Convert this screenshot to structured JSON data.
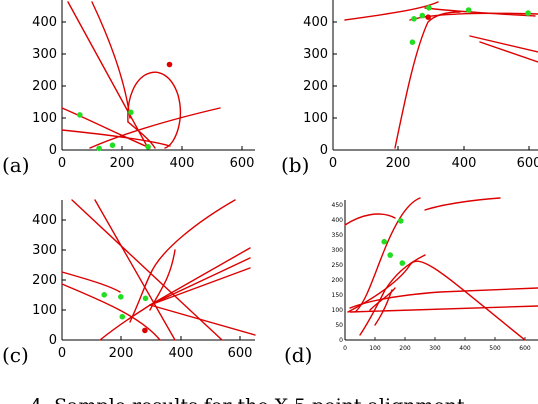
{
  "panels": [
    {
      "label": "(a)",
      "xticks": [
        "0",
        "200",
        "400",
        "600"
      ],
      "yticks": [
        "0",
        "100",
        "200",
        "300",
        "400"
      ],
      "green_points": [
        [
          60,
          110
        ],
        [
          125,
          5
        ],
        [
          170,
          15
        ],
        [
          232,
          118
        ],
        [
          290,
          10
        ]
      ],
      "red_points": [
        [
          362,
          268
        ]
      ],
      "xlim": [
        0,
        650
      ],
      "ylim": [
        0,
        470
      ]
    },
    {
      "label": "(b)",
      "xticks": [
        "0",
        "200",
        "400",
        "600"
      ],
      "yticks": [
        "0",
        "100",
        "200",
        "300",
        "400"
      ],
      "green_points": [
        [
          240,
          345
        ],
        [
          245,
          420
        ],
        [
          270,
          430
        ],
        [
          290,
          455
        ],
        [
          410,
          448
        ],
        [
          590,
          438
        ]
      ],
      "red_points": [
        [
          288,
          425
        ]
      ],
      "xlim": [
        0,
        620
      ],
      "ylim": [
        0,
        480
      ]
    },
    {
      "label": "(c)",
      "xticks": [
        "0",
        "200",
        "400",
        "600"
      ],
      "yticks": [
        "0",
        "100",
        "200",
        "300",
        "400"
      ],
      "green_points": [
        [
          140,
          155
        ],
        [
          195,
          148
        ],
        [
          200,
          80
        ],
        [
          277,
          143
        ]
      ],
      "red_points": [
        [
          275,
          33
        ]
      ],
      "xlim": [
        0,
        640
      ],
      "ylim": [
        0,
        480
      ]
    },
    {
      "label": "(d)",
      "xticks": [
        "0",
        "100",
        "200",
        "300",
        "400",
        "500",
        "600"
      ],
      "yticks": [
        "0",
        "50",
        "100",
        "150",
        "200",
        "250",
        "300",
        "350",
        "400",
        "450"
      ],
      "green_points": [
        [
          130,
          330
        ],
        [
          150,
          285
        ],
        [
          185,
          400
        ],
        [
          190,
          258
        ]
      ],
      "red_points": [],
      "xlim": [
        0,
        640
      ],
      "ylim": [
        0,
        470
      ]
    }
  ],
  "caption": "4. Sample results for the X-5 point alignment"
}
